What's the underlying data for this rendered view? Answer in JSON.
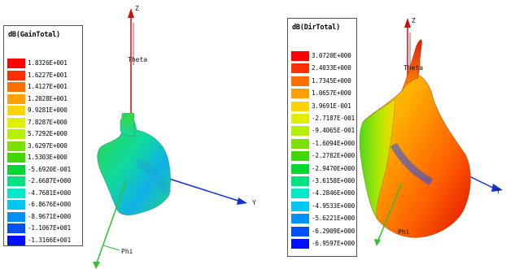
{
  "plots": [
    {
      "legend": {
        "title": "dB(GainTotal)",
        "entries": [
          {
            "label": "1.8326E+001",
            "color": "#ff0000"
          },
          {
            "label": "1.6227E+001",
            "color": "#ff3000"
          },
          {
            "label": "1.4127E+001",
            "color": "#ff7000"
          },
          {
            "label": "1.2028E+001",
            "color": "#ffa000"
          },
          {
            "label": "9.9281E+000",
            "color": "#ffd400"
          },
          {
            "label": "7.8287E+000",
            "color": "#e0ee00"
          },
          {
            "label": "5.7292E+000",
            "color": "#b4f000"
          },
          {
            "label": "3.6297E+000",
            "color": "#7ce000"
          },
          {
            "label": "1.5303E+000",
            "color": "#40d800"
          },
          {
            "label": "-5.6920E-001",
            "color": "#00d830"
          },
          {
            "label": "-2.6687E+000",
            "color": "#00e080"
          },
          {
            "label": "-4.7681E+000",
            "color": "#00e8c8"
          },
          {
            "label": "-6.8676E+000",
            "color": "#00c8f0"
          },
          {
            "label": "-8.9671E+000",
            "color": "#0090f8"
          },
          {
            "label": "-1.1067E+001",
            "color": "#0050f8"
          },
          {
            "label": "-1.3166E+001",
            "color": "#0010ff"
          }
        ]
      },
      "axes": {
        "z": "Z",
        "y": "Y",
        "phi": "Phi",
        "theta": "Theta"
      }
    },
    {
      "legend": {
        "title": "dB(DirTotal)",
        "entries": [
          {
            "label": "3.0720E+000",
            "color": "#ff0000"
          },
          {
            "label": "2.4033E+000",
            "color": "#ff3000"
          },
          {
            "label": "1.7345E+000",
            "color": "#ff7000"
          },
          {
            "label": "1.0657E+000",
            "color": "#ffa000"
          },
          {
            "label": "3.9691E-001",
            "color": "#ffd400"
          },
          {
            "label": "-2.7187E-001",
            "color": "#e0ee00"
          },
          {
            "label": "-9.4065E-001",
            "color": "#b4f000"
          },
          {
            "label": "-1.6094E+000",
            "color": "#7ce000"
          },
          {
            "label": "-2.2782E+000",
            "color": "#40d800"
          },
          {
            "label": "-2.9470E+000",
            "color": "#00d830"
          },
          {
            "label": "-3.6158E+000",
            "color": "#00e080"
          },
          {
            "label": "-4.2846E+000",
            "color": "#00e8c8"
          },
          {
            "label": "-4.9533E+000",
            "color": "#00c8f0"
          },
          {
            "label": "-5.6221E+000",
            "color": "#0090f8"
          },
          {
            "label": "-6.2909E+000",
            "color": "#0050f8"
          },
          {
            "label": "-6.9597E+000",
            "color": "#0010ff"
          }
        ]
      },
      "axes": {
        "z": "Z",
        "y": "Y",
        "phi": "Phi",
        "theta": "Theta"
      }
    }
  ]
}
